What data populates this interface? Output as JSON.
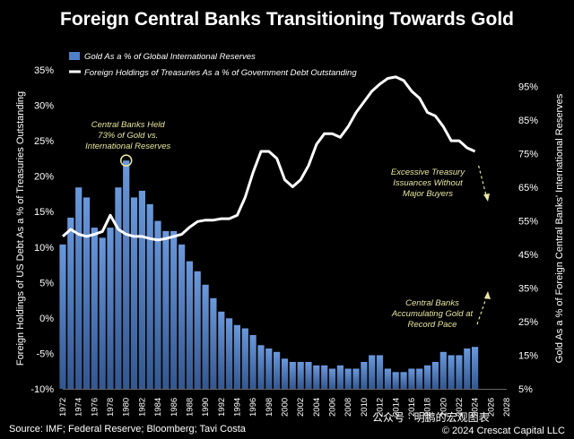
{
  "title": "Foreign Central Banks Transitioning Towards Gold",
  "source": "Source: IMF; Federal Reserve; Bloomberg; Tavi Costa",
  "copyright": "© 2024 Crescat Capital LLC",
  "watermark": "公众号 · 明鹏的宏观图表",
  "colors": {
    "background": "#000000",
    "bars": "#4f7fc8",
    "line": "#ffffff",
    "annotation": "#e8e6a0"
  },
  "chart_data": {
    "type": "bar+line",
    "legend_position": "top-left",
    "grid": false,
    "ylabel_left": "Foreign Holdings of US Debt As a % of  Treasuries Outstanding",
    "ylabel_right": "Gold As a % of Foreign Central Banks' International Reserves",
    "ylim_left": [
      -10,
      35
    ],
    "ylim_right": [
      5,
      100
    ],
    "xlim": [
      1972,
      2028
    ],
    "yticks_left": [
      "-10%",
      "-5%",
      "0%",
      "5%",
      "10%",
      "15%",
      "20%",
      "25%",
      "30%",
      "35%"
    ],
    "yticks_left_values": [
      -10,
      -5,
      0,
      5,
      10,
      15,
      20,
      25,
      30,
      35
    ],
    "yticks_right": [
      "5%",
      "15%",
      "25%",
      "35%",
      "45%",
      "55%",
      "65%",
      "75%",
      "85%",
      "95%"
    ],
    "yticks_right_values": [
      5,
      15,
      25,
      35,
      45,
      55,
      65,
      75,
      85,
      95
    ],
    "xticks": [
      "1972",
      "1974",
      "1976",
      "1978",
      "1980",
      "1982",
      "1984",
      "1986",
      "1988",
      "1990",
      "1992",
      "1994",
      "1996",
      "1998",
      "2000",
      "2002",
      "2004",
      "2006",
      "2008",
      "2010",
      "2012",
      "2014",
      "2016",
      "2018",
      "2020",
      "2022",
      "2024",
      "2026",
      "2028"
    ],
    "series": [
      {
        "name": "Gold As a % of Global International Reserves",
        "type": "bar",
        "axis": "right",
        "points": [
          [
            1972,
            48
          ],
          [
            1973,
            56
          ],
          [
            1974,
            65
          ],
          [
            1975,
            62
          ],
          [
            1976,
            53
          ],
          [
            1977,
            50
          ],
          [
            1978,
            53
          ],
          [
            1979,
            65
          ],
          [
            1980,
            73
          ],
          [
            1981,
            62
          ],
          [
            1982,
            64
          ],
          [
            1983,
            60
          ],
          [
            1984,
            55
          ],
          [
            1985,
            52
          ],
          [
            1986,
            52
          ],
          [
            1987,
            48
          ],
          [
            1988,
            43
          ],
          [
            1989,
            40
          ],
          [
            1990,
            36
          ],
          [
            1991,
            32
          ],
          [
            1992,
            28
          ],
          [
            1993,
            26
          ],
          [
            1994,
            24
          ],
          [
            1995,
            23
          ],
          [
            1996,
            21
          ],
          [
            1997,
            18
          ],
          [
            1998,
            17
          ],
          [
            1999,
            16
          ],
          [
            2000,
            14
          ],
          [
            2001,
            13
          ],
          [
            2002,
            13
          ],
          [
            2003,
            13
          ],
          [
            2004,
            12
          ],
          [
            2005,
            12
          ],
          [
            2006,
            11
          ],
          [
            2007,
            12
          ],
          [
            2008,
            11
          ],
          [
            2009,
            11
          ],
          [
            2010,
            13
          ],
          [
            2011,
            15
          ],
          [
            2012,
            15
          ],
          [
            2013,
            11
          ],
          [
            2014,
            10
          ],
          [
            2015,
            10
          ],
          [
            2016,
            11
          ],
          [
            2017,
            11
          ],
          [
            2018,
            12
          ],
          [
            2019,
            13
          ],
          [
            2020,
            16
          ],
          [
            2021,
            15
          ],
          [
            2022,
            15
          ],
          [
            2023,
            17
          ],
          [
            2024,
            17.5
          ]
        ]
      },
      {
        "name": "Foreign Holdings of Treasuries As a % of Government Debt Outstanding",
        "type": "line",
        "axis": "left",
        "points": [
          [
            1972,
            11.5
          ],
          [
            1973,
            12.5
          ],
          [
            1974,
            11.8
          ],
          [
            1975,
            11.5
          ],
          [
            1976,
            11.8
          ],
          [
            1977,
            12.2
          ],
          [
            1978,
            14.5
          ],
          [
            1979,
            12.5
          ],
          [
            1980,
            11.8
          ],
          [
            1981,
            11.5
          ],
          [
            1982,
            11.5
          ],
          [
            1983,
            11.2
          ],
          [
            1984,
            11.0
          ],
          [
            1985,
            11.2
          ],
          [
            1986,
            11.5
          ],
          [
            1987,
            11.8
          ],
          [
            1988,
            12.8
          ],
          [
            1989,
            13.6
          ],
          [
            1990,
            13.8
          ],
          [
            1991,
            13.8
          ],
          [
            1992,
            14.0
          ],
          [
            1993,
            14.0
          ],
          [
            1994,
            14.5
          ],
          [
            1995,
            17.0
          ],
          [
            1996,
            20.5
          ],
          [
            1997,
            23.5
          ],
          [
            1998,
            23.5
          ],
          [
            1999,
            22.5
          ],
          [
            2000,
            19.5
          ],
          [
            2001,
            18.5
          ],
          [
            2002,
            19.5
          ],
          [
            2003,
            21.5
          ],
          [
            2004,
            24.5
          ],
          [
            2005,
            26.0
          ],
          [
            2006,
            26.0
          ],
          [
            2007,
            25.5
          ],
          [
            2008,
            27.0
          ],
          [
            2009,
            29.0
          ],
          [
            2010,
            30.5
          ],
          [
            2011,
            32.0
          ],
          [
            2012,
            33.0
          ],
          [
            2013,
            33.8
          ],
          [
            2014,
            34.0
          ],
          [
            2015,
            33.5
          ],
          [
            2016,
            32.0
          ],
          [
            2017,
            31.0
          ],
          [
            2018,
            29.0
          ],
          [
            2019,
            28.5
          ],
          [
            2020,
            27.0
          ],
          [
            2021,
            25.0
          ],
          [
            2022,
            25.0
          ],
          [
            2023,
            24.0
          ],
          [
            2024,
            23.5
          ]
        ]
      }
    ],
    "annotations": [
      {
        "text": [
          "Central Banks Held",
          "73% of Gold vs.",
          "International Reserves"
        ],
        "at": [
          1980,
          73
        ]
      },
      {
        "text": [
          "Excessive Treasury",
          "Issuances Without",
          "Major Buyers"
        ],
        "at": [
          2024,
          22
        ]
      },
      {
        "text": [
          "Central Banks",
          "Accumulating Gold at",
          "Record Pace"
        ],
        "at": [
          2024,
          1.5
        ]
      }
    ]
  }
}
